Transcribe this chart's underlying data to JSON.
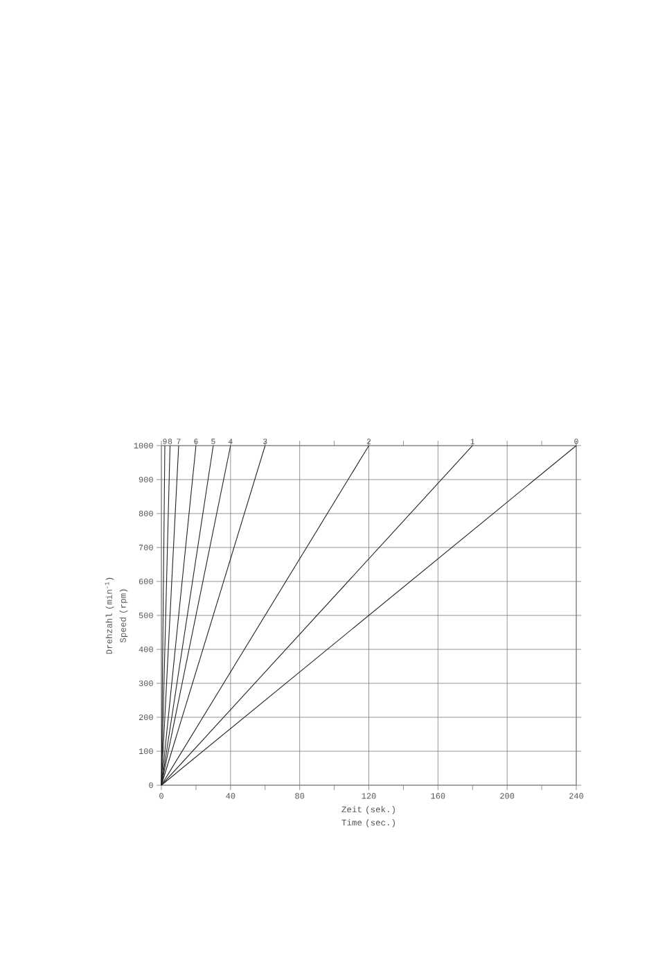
{
  "chart_data": {
    "type": "line",
    "xlabel": "Zeit (sek.) Time (sec.)",
    "ylabel": "Drehzahl (min$^{-1}$) Speed (rpm)",
    "xlim": [
      0,
      240
    ],
    "ylim": [
      0,
      1000
    ],
    "xticks": [
      0,
      {
        "value": 20,
        "label": null
      },
      40,
      {
        "value": 60,
        "label": null
      },
      80,
      {
        "value": 100,
        "label": null
      },
      120,
      {
        "value": 140,
        "label": null
      },
      160,
      {
        "value": 180,
        "label": null
      },
      200,
      {
        "value": 220,
        "label": null
      },
      240
    ],
    "yticks": [
      0,
      100,
      200,
      300,
      400,
      500,
      600,
      700,
      800,
      900,
      1000
    ],
    "grid": true,
    "series": [
      {
        "name": "0",
        "color": "#222222",
        "x": [
          0,
          240
        ],
        "values": [
          0,
          1000
        ]
      },
      {
        "name": "1",
        "color": "#222222",
        "x": [
          0,
          180
        ],
        "values": [
          0,
          1000
        ]
      },
      {
        "name": "2",
        "color": "#222222",
        "x": [
          0,
          120
        ],
        "values": [
          0,
          1000
        ]
      },
      {
        "name": "3",
        "color": "#222222",
        "x": [
          0,
          60
        ],
        "values": [
          0,
          1000
        ]
      },
      {
        "name": "4",
        "color": "#222222",
        "x": [
          0,
          40
        ],
        "values": [
          0,
          1000
        ]
      },
      {
        "name": "5",
        "color": "#222222",
        "x": [
          0,
          30
        ],
        "values": [
          0,
          1000
        ]
      },
      {
        "name": "6",
        "color": "#222222",
        "x": [
          0,
          20
        ],
        "values": [
          0,
          1000
        ]
      },
      {
        "name": "7",
        "color": "#222222",
        "x": [
          0,
          10
        ],
        "values": [
          0,
          1000
        ]
      },
      {
        "name": "8",
        "color": "#222222",
        "x": [
          0,
          5
        ],
        "values": [
          0,
          1000
        ]
      },
      {
        "name": "9",
        "color": "#222222",
        "x": [
          0,
          2
        ],
        "values": [
          0,
          1000
        ]
      }
    ]
  }
}
